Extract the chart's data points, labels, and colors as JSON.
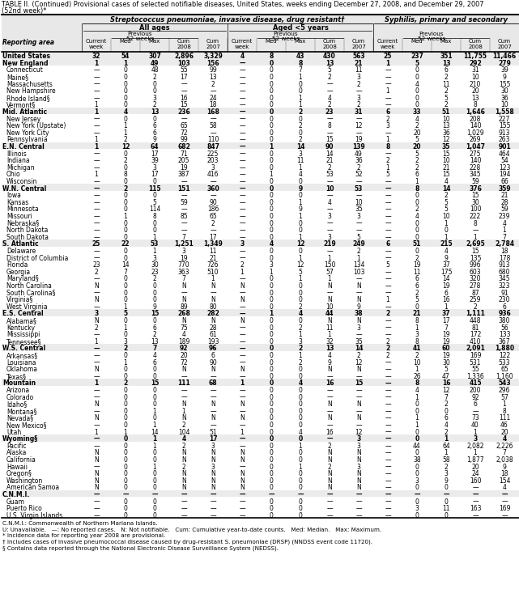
{
  "title_line1": "TABLE II. (Continued) Provisional cases of selected notifiable diseases, United States, weeks ending December 27, 2008, and December 29, 2007",
  "title_line2": "(52nd week)*",
  "col_group1": "Streptococcus pneumoniae, invasive disease, drug resistant†",
  "col_group1a": "All ages",
  "col_group1b": "Aged <5 years",
  "col_group2": "Syphilis, primary and secondary",
  "prev52_label": "Previous\n52 weeks",
  "reporting_area_label": "Reporting area",
  "rows": [
    [
      "United States",
      "32",
      "54",
      "307",
      "2,896",
      "3,329",
      "4",
      "8",
      "43",
      "430",
      "563",
      "25",
      "237",
      "351",
      "11,755",
      "11,466"
    ],
    [
      "New England",
      "1",
      "1",
      "49",
      "103",
      "156",
      "—",
      "0",
      "8",
      "13",
      "21",
      "1",
      "5",
      "13",
      "292",
      "279"
    ],
    [
      "Connecticut",
      "—",
      "0",
      "48",
      "55",
      "99",
      "—",
      "0",
      "7",
      "5",
      "11",
      "—",
      "0",
      "6",
      "31",
      "39"
    ],
    [
      "Maine§",
      "—",
      "0",
      "2",
      "17",
      "13",
      "—",
      "0",
      "1",
      "2",
      "3",
      "—",
      "0",
      "2",
      "10",
      "9"
    ],
    [
      "Massachusetts",
      "—",
      "0",
      "0",
      "—",
      "2",
      "—",
      "0",
      "0",
      "—",
      "2",
      "—",
      "4",
      "11",
      "210",
      "155"
    ],
    [
      "New Hampshire",
      "—",
      "0",
      "0",
      "—",
      "—",
      "—",
      "0",
      "0",
      "—",
      "—",
      "1",
      "0",
      "2",
      "20",
      "30"
    ],
    [
      "Rhode Island§",
      "—",
      "0",
      "3",
      "16",
      "24",
      "—",
      "0",
      "1",
      "4",
      "3",
      "—",
      "0",
      "5",
      "13",
      "36"
    ],
    [
      "Vermont§",
      "1",
      "0",
      "2",
      "15",
      "18",
      "—",
      "0",
      "1",
      "2",
      "2",
      "—",
      "0",
      "2",
      "8",
      "10"
    ],
    [
      "Mid. Atlantic",
      "1",
      "4",
      "13",
      "236",
      "168",
      "—",
      "0",
      "2",
      "23",
      "31",
      "6",
      "33",
      "51",
      "1,646",
      "1,558"
    ],
    [
      "New Jersey",
      "—",
      "0",
      "0",
      "—",
      "—",
      "—",
      "0",
      "0",
      "—",
      "—",
      "2",
      "4",
      "10",
      "208",
      "227"
    ],
    [
      "New York (Upstate)",
      "—",
      "1",
      "6",
      "65",
      "58",
      "—",
      "0",
      "2",
      "8",
      "12",
      "3",
      "2",
      "13",
      "140",
      "155"
    ],
    [
      "New York City",
      "—",
      "1",
      "6",
      "72",
      "—",
      "—",
      "0",
      "0",
      "—",
      "—",
      "—",
      "20",
      "36",
      "1,029",
      "913"
    ],
    [
      "Pennsylvania",
      "1",
      "2",
      "9",
      "99",
      "110",
      "—",
      "0",
      "2",
      "15",
      "19",
      "1",
      "5",
      "12",
      "269",
      "263"
    ],
    [
      "E.N. Central",
      "1",
      "12",
      "64",
      "682",
      "847",
      "—",
      "1",
      "14",
      "90",
      "139",
      "8",
      "20",
      "35",
      "1,047",
      "901"
    ],
    [
      "Illinois",
      "—",
      "0",
      "17",
      "71",
      "225",
      "—",
      "0",
      "3",
      "14",
      "49",
      "—",
      "5",
      "15",
      "275",
      "464"
    ],
    [
      "Indiana",
      "—",
      "2",
      "39",
      "205",
      "203",
      "—",
      "0",
      "11",
      "21",
      "36",
      "2",
      "2",
      "10",
      "140",
      "54"
    ],
    [
      "Michigan",
      "—",
      "0",
      "3",
      "19",
      "3",
      "—",
      "0",
      "1",
      "2",
      "2",
      "1",
      "2",
      "21",
      "228",
      "123"
    ],
    [
      "Ohio",
      "1",
      "8",
      "17",
      "387",
      "416",
      "—",
      "1",
      "4",
      "53",
      "52",
      "5",
      "6",
      "15",
      "345",
      "194"
    ],
    [
      "Wisconsin",
      "—",
      "0",
      "0",
      "—",
      "—",
      "—",
      "0",
      "0",
      "—",
      "—",
      "—",
      "1",
      "4",
      "59",
      "66"
    ],
    [
      "W.N. Central",
      "—",
      "2",
      "115",
      "151",
      "360",
      "—",
      "0",
      "9",
      "10",
      "53",
      "—",
      "8",
      "14",
      "376",
      "359"
    ],
    [
      "Iowa",
      "—",
      "0",
      "0",
      "—",
      "—",
      "—",
      "0",
      "0",
      "—",
      "—",
      "—",
      "0",
      "2",
      "15",
      "21"
    ],
    [
      "Kansas",
      "—",
      "0",
      "5",
      "59",
      "90",
      "—",
      "0",
      "1",
      "4",
      "10",
      "—",
      "0",
      "5",
      "30",
      "28"
    ],
    [
      "Minnesota",
      "—",
      "0",
      "114",
      "—",
      "186",
      "—",
      "0",
      "9",
      "—",
      "35",
      "—",
      "2",
      "5",
      "100",
      "59"
    ],
    [
      "Missouri",
      "—",
      "1",
      "8",
      "85",
      "65",
      "—",
      "0",
      "1",
      "3",
      "3",
      "—",
      "4",
      "10",
      "222",
      "239"
    ],
    [
      "Nebraska§",
      "—",
      "0",
      "0",
      "—",
      "2",
      "—",
      "0",
      "0",
      "—",
      "—",
      "—",
      "0",
      "1",
      "8",
      "4"
    ],
    [
      "North Dakota",
      "—",
      "0",
      "0",
      "—",
      "—",
      "—",
      "0",
      "0",
      "—",
      "—",
      "—",
      "0",
      "0",
      "—",
      "1"
    ],
    [
      "South Dakota",
      "—",
      "0",
      "1",
      "7",
      "17",
      "—",
      "0",
      "1",
      "3",
      "5",
      "—",
      "0",
      "1",
      "1",
      "7"
    ],
    [
      "S. Atlantic",
      "25",
      "22",
      "53",
      "1,251",
      "1,349",
      "3",
      "4",
      "12",
      "219",
      "249",
      "6",
      "51",
      "215",
      "2,695",
      "2,784"
    ],
    [
      "Delaware",
      "—",
      "0",
      "1",
      "3",
      "11",
      "—",
      "0",
      "0",
      "—",
      "2",
      "—",
      "0",
      "4",
      "15",
      "18"
    ],
    [
      "District of Columbia",
      "—",
      "0",
      "3",
      "19",
      "21",
      "—",
      "0",
      "1",
      "1",
      "1",
      "—",
      "2",
      "9",
      "135",
      "178"
    ],
    [
      "Florida",
      "23",
      "14",
      "30",
      "770",
      "726",
      "2",
      "3",
      "12",
      "150",
      "134",
      "5",
      "19",
      "37",
      "996",
      "913"
    ],
    [
      "Georgia",
      "2",
      "7",
      "23",
      "363",
      "510",
      "1",
      "1",
      "5",
      "57",
      "103",
      "—",
      "11",
      "175",
      "603",
      "680"
    ],
    [
      "Maryland§",
      "—",
      "0",
      "2",
      "7",
      "1",
      "—",
      "0",
      "1",
      "1",
      "—",
      "—",
      "6",
      "14",
      "320",
      "345"
    ],
    [
      "North Carolina",
      "N",
      "0",
      "0",
      "N",
      "N",
      "N",
      "0",
      "0",
      "N",
      "N",
      "—",
      "6",
      "19",
      "278",
      "323"
    ],
    [
      "South Carolina§",
      "—",
      "0",
      "0",
      "—",
      "—",
      "—",
      "0",
      "0",
      "—",
      "—",
      "—",
      "2",
      "6",
      "87",
      "91"
    ],
    [
      "Virginia§",
      "N",
      "0",
      "0",
      "N",
      "N",
      "N",
      "0",
      "0",
      "N",
      "N",
      "1",
      "5",
      "16",
      "259",
      "230"
    ],
    [
      "West Virginia",
      "—",
      "1",
      "9",
      "89",
      "80",
      "—",
      "0",
      "2",
      "10",
      "9",
      "—",
      "0",
      "1",
      "2",
      "6"
    ],
    [
      "E.S. Central",
      "3",
      "5",
      "15",
      "268",
      "282",
      "—",
      "1",
      "4",
      "44",
      "38",
      "2",
      "21",
      "37",
      "1,111",
      "936"
    ],
    [
      "Alabama§",
      "N",
      "0",
      "0",
      "N",
      "N",
      "N",
      "0",
      "0",
      "N",
      "N",
      "—",
      "8",
      "17",
      "448",
      "380"
    ],
    [
      "Kentucky",
      "2",
      "1",
      "6",
      "75",
      "28",
      "—",
      "0",
      "2",
      "11",
      "3",
      "—",
      "1",
      "7",
      "81",
      "56"
    ],
    [
      "Mississippi",
      "—",
      "0",
      "2",
      "4",
      "61",
      "—",
      "0",
      "1",
      "1",
      "—",
      "—",
      "3",
      "19",
      "172",
      "133"
    ],
    [
      "Tennessee§",
      "1",
      "3",
      "13",
      "189",
      "193",
      "—",
      "0",
      "3",
      "32",
      "35",
      "2",
      "8",
      "19",
      "410",
      "367"
    ],
    [
      "W.S. Central",
      "—",
      "2",
      "7",
      "92",
      "96",
      "—",
      "0",
      "2",
      "13",
      "14",
      "2",
      "41",
      "60",
      "2,091",
      "1,880"
    ],
    [
      "Arkansas§",
      "—",
      "0",
      "4",
      "20",
      "6",
      "—",
      "0",
      "1",
      "4",
      "2",
      "2",
      "2",
      "19",
      "169",
      "122"
    ],
    [
      "Louisiana",
      "—",
      "1",
      "6",
      "72",
      "90",
      "—",
      "0",
      "2",
      "9",
      "12",
      "—",
      "10",
      "30",
      "531",
      "533"
    ],
    [
      "Oklahoma",
      "N",
      "0",
      "0",
      "N",
      "N",
      "N",
      "0",
      "0",
      "N",
      "N",
      "—",
      "1",
      "5",
      "55",
      "65"
    ],
    [
      "Texas§",
      "—",
      "0",
      "0",
      "—",
      "—",
      "—",
      "0",
      "0",
      "—",
      "—",
      "—",
      "26",
      "47",
      "1,336",
      "1,160"
    ],
    [
      "Mountain",
      "1",
      "2",
      "15",
      "111",
      "68",
      "1",
      "0",
      "4",
      "16",
      "15",
      "—",
      "8",
      "16",
      "415",
      "543"
    ],
    [
      "Arizona",
      "—",
      "0",
      "0",
      "—",
      "—",
      "—",
      "0",
      "0",
      "—",
      "—",
      "—",
      "4",
      "12",
      "200",
      "296"
    ],
    [
      "Colorado",
      "—",
      "0",
      "0",
      "—",
      "—",
      "—",
      "0",
      "0",
      "—",
      "—",
      "—",
      "1",
      "7",
      "92",
      "57"
    ],
    [
      "Idaho§",
      "N",
      "0",
      "0",
      "N",
      "N",
      "N",
      "0",
      "0",
      "N",
      "N",
      "—",
      "0",
      "2",
      "6",
      "1"
    ],
    [
      "Montana§",
      "—",
      "0",
      "1",
      "1",
      "—",
      "—",
      "0",
      "0",
      "—",
      "—",
      "—",
      "0",
      "0",
      "—",
      "8"
    ],
    [
      "Nevada§",
      "N",
      "0",
      "0",
      "N",
      "N",
      "N",
      "0",
      "0",
      "N",
      "N",
      "—",
      "1",
      "6",
      "73",
      "111"
    ],
    [
      "New Mexico§",
      "—",
      "0",
      "1",
      "2",
      "—",
      "—",
      "0",
      "0",
      "—",
      "—",
      "—",
      "1",
      "4",
      "40",
      "46"
    ],
    [
      "Utah",
      "1",
      "1",
      "14",
      "104",
      "51",
      "1",
      "0",
      "4",
      "16",
      "12",
      "—",
      "0",
      "2",
      "1",
      "20"
    ],
    [
      "Wyoming§",
      "—",
      "0",
      "1",
      "4",
      "17",
      "—",
      "0",
      "0",
      "—",
      "3",
      "—",
      "0",
      "1",
      "3",
      "4"
    ],
    [
      "Pacific",
      "—",
      "0",
      "1",
      "2",
      "3",
      "—",
      "0",
      "1",
      "2",
      "3",
      "—",
      "44",
      "64",
      "2,082",
      "2,226"
    ],
    [
      "Alaska",
      "N",
      "0",
      "0",
      "N",
      "N",
      "N",
      "0",
      "0",
      "N",
      "N",
      "—",
      "0",
      "1",
      "1",
      "7"
    ],
    [
      "California",
      "N",
      "0",
      "0",
      "N",
      "N",
      "N",
      "0",
      "0",
      "N",
      "N",
      "—",
      "38",
      "58",
      "1,877",
      "2,038"
    ],
    [
      "Hawaii",
      "—",
      "0",
      "1",
      "2",
      "3",
      "—",
      "0",
      "1",
      "2",
      "3",
      "—",
      "0",
      "2",
      "20",
      "9"
    ],
    [
      "Oregon§",
      "N",
      "0",
      "0",
      "N",
      "N",
      "N",
      "0",
      "0",
      "N",
      "N",
      "—",
      "0",
      "3",
      "24",
      "18"
    ],
    [
      "Washington",
      "N",
      "0",
      "0",
      "N",
      "N",
      "N",
      "0",
      "0",
      "N",
      "N",
      "—",
      "3",
      "9",
      "160",
      "154"
    ],
    [
      "American Samoa",
      "N",
      "0",
      "0",
      "N",
      "N",
      "N",
      "0",
      "0",
      "N",
      "N",
      "—",
      "0",
      "0",
      "—",
      "4"
    ],
    [
      "C.N.M.I.",
      "—",
      "—",
      "—",
      "—",
      "—",
      "—",
      "—",
      "—",
      "—",
      "—",
      "—",
      "—",
      "—",
      "—",
      "—"
    ],
    [
      "Guam",
      "—",
      "0",
      "0",
      "—",
      "—",
      "—",
      "0",
      "0",
      "—",
      "—",
      "—",
      "0",
      "0",
      "—",
      "—"
    ],
    [
      "Puerto Rico",
      "—",
      "0",
      "0",
      "—",
      "—",
      "—",
      "0",
      "0",
      "—",
      "—",
      "—",
      "3",
      "11",
      "163",
      "169"
    ],
    [
      "U.S. Virgin Islands",
      "—",
      "0",
      "0",
      "—",
      "—",
      "—",
      "0",
      "0",
      "—",
      "—",
      "—",
      "0",
      "0",
      "—",
      "—"
    ]
  ],
  "bold_row_indices": [
    0,
    1,
    8,
    13,
    19,
    27,
    37,
    42,
    47,
    55,
    63
  ],
  "footnotes": [
    "C.N.M.I.: Commonwealth of Northern Mariana Islands.",
    "U: Unavailable.   —: No reported cases.   N: Not notifiable.   Cum: Cumulative year-to-date counts.   Med: Median.   Max: Maximum.",
    "* Incidence data for reporting year 2008 are provisional.",
    "† Includes cases of invasive pneumococcal disease caused by drug-resistant S. pneumoniae (DRSP) (NNDSS event code 11720).",
    "§ Contains data reported through the National Electronic Disease Surveillance System (NEDSS)."
  ]
}
